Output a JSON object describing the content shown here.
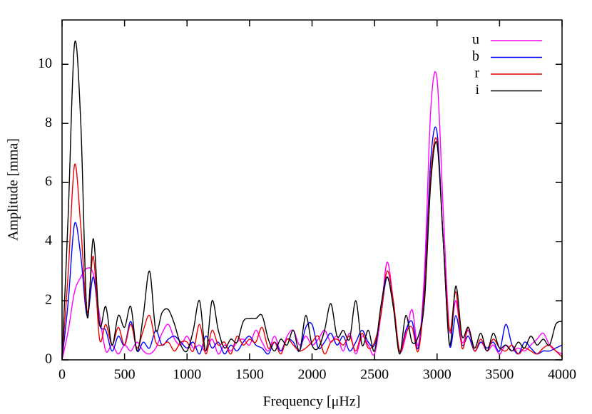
{
  "chart_data": {
    "type": "line",
    "xlabel": "Frequency [μHz]",
    "ylabel": "Amplitude [mma]",
    "x": [
      0,
      50,
      100,
      150,
      200,
      250,
      300,
      350,
      400,
      450,
      500,
      550,
      600,
      650,
      700,
      750,
      800,
      850,
      900,
      950,
      1000,
      1050,
      1100,
      1150,
      1200,
      1250,
      1300,
      1350,
      1400,
      1450,
      1500,
      1550,
      1600,
      1650,
      1700,
      1750,
      1800,
      1850,
      1900,
      1950,
      2000,
      2050,
      2100,
      2150,
      2200,
      2250,
      2300,
      2350,
      2400,
      2450,
      2500,
      2550,
      2600,
      2650,
      2700,
      2750,
      2800,
      2850,
      2900,
      2950,
      3000,
      3050,
      3100,
      3150,
      3200,
      3250,
      3300,
      3350,
      3400,
      3450,
      3500,
      3550,
      3600,
      3650,
      3700,
      3750,
      3800,
      3850,
      3900,
      3950,
      4000
    ],
    "series": [
      {
        "name": "u",
        "color": "#ff00ff",
        "values": [
          0,
          1,
          2.3,
          2.8,
          3.1,
          2.9,
          1.5,
          0.3,
          0.5,
          0.2,
          0.5,
          0.3,
          0.6,
          0.3,
          0.2,
          0.4,
          0.9,
          1.2,
          0.7,
          0.5,
          0.8,
          0.4,
          0.5,
          0.3,
          0.7,
          0.2,
          0.5,
          0.3,
          0.6,
          0.7,
          0.5,
          1.0,
          0.6,
          0.3,
          0.8,
          0.3,
          0.8,
          1.0,
          0.5,
          0.8,
          0.5,
          0.7,
          1.0,
          0.6,
          0.8,
          0.3,
          0.9,
          0.2,
          0.8,
          0.5,
          0.2,
          1.5,
          3.3,
          2.0,
          0.3,
          0.8,
          1.7,
          0.5,
          3.0,
          8.5,
          9.5,
          5.0,
          1.0,
          2.0,
          0.6,
          1.0,
          0.3,
          0.6,
          0.3,
          0.5,
          0.2,
          0.5,
          0.3,
          0.4,
          0.3,
          0.5,
          0.7,
          0.9,
          0.5,
          0.3,
          0.2
        ]
      },
      {
        "name": "b",
        "color": "#0000ff",
        "values": [
          0,
          2,
          4.6,
          3.5,
          1.5,
          2.8,
          1.2,
          1.0,
          0.3,
          0.8,
          0.5,
          1.3,
          0.3,
          0.6,
          0.4,
          1.0,
          0.5,
          0.7,
          0.8,
          0.6,
          0.4,
          0.6,
          0.2,
          0.8,
          0.4,
          0.6,
          0.2,
          0.5,
          0.3,
          0.6,
          0.8,
          0.5,
          0.4,
          0.2,
          0.6,
          0.3,
          0.7,
          0.6,
          0.3,
          1.1,
          1.2,
          0.4,
          0.6,
          0.9,
          0.5,
          0.8,
          0.3,
          0.6,
          1.0,
          0.6,
          0.5,
          1.5,
          2.8,
          1.8,
          0.3,
          1.0,
          1.3,
          0.4,
          2.5,
          6.8,
          7.7,
          4.0,
          0.5,
          1.5,
          0.5,
          0.8,
          0.3,
          0.6,
          0.4,
          0.6,
          0.3,
          1.2,
          0.5,
          0.2,
          0.6,
          0.4,
          0.2,
          0.3,
          0.3,
          0.4,
          0.5
        ]
      },
      {
        "name": "r",
        "color": "#ee0000",
        "values": [
          0,
          3,
          6.6,
          4.5,
          1.6,
          3.5,
          0.7,
          1.2,
          0.5,
          1.1,
          0.5,
          1.2,
          0.4,
          1.0,
          1.5,
          0.6,
          0.5,
          0.6,
          0.3,
          0.6,
          0.6,
          0.3,
          1.2,
          0.2,
          1.0,
          0.5,
          0.6,
          0.2,
          0.8,
          0.5,
          0.7,
          0.6,
          1.1,
          0.4,
          0.6,
          0.2,
          0.7,
          0.5,
          0.3,
          0.4,
          0.6,
          0.8,
          0.2,
          0.6,
          0.7,
          0.5,
          0.8,
          0.3,
          0.9,
          0.4,
          0.6,
          1.5,
          3.0,
          2.0,
          0.3,
          0.9,
          1.1,
          0.3,
          2.3,
          6.3,
          7.4,
          4.0,
          1.0,
          2.3,
          0.4,
          1.1,
          0.3,
          0.7,
          0.3,
          0.7,
          0.4,
          0.3,
          0.5,
          0.2,
          0.4,
          0.3,
          0.2,
          0.4,
          0.5,
          0.3,
          0.1
        ]
      },
      {
        "name": "i",
        "color": "#000000",
        "values": [
          0,
          5,
          10.7,
          8,
          1.5,
          4.1,
          1.2,
          1.8,
          0.5,
          1.5,
          1.1,
          1.8,
          0.3,
          1.5,
          3.0,
          1.0,
          1.6,
          1.7,
          1.2,
          0.5,
          0.3,
          1.0,
          2.0,
          0.3,
          2.0,
          1.0,
          0.4,
          0.7,
          0.6,
          1.3,
          1.4,
          1.4,
          1.5,
          0.7,
          0.3,
          0.7,
          0.5,
          1.0,
          0.3,
          1.5,
          0.5,
          0.4,
          1.0,
          1.9,
          0.8,
          1.0,
          0.7,
          2.0,
          0.5,
          1.0,
          0.3,
          1.8,
          2.8,
          1.8,
          0.2,
          1.5,
          0.6,
          0.8,
          2.0,
          6.0,
          7.3,
          4.0,
          0.5,
          2.5,
          0.8,
          1.1,
          0.4,
          0.9,
          0.3,
          0.9,
          0.4,
          0.5,
          0.3,
          0.6,
          0.4,
          0.8,
          0.5,
          0.7,
          0.5,
          1.2,
          1.3
        ]
      }
    ],
    "xlim": [
      0,
      4000
    ],
    "xticks": [
      0,
      500,
      1000,
      1500,
      2000,
      2500,
      3000,
      3500,
      4000
    ],
    "ylim": [
      0,
      11.5
    ],
    "yticks": [
      0,
      2,
      4,
      6,
      8,
      10
    ],
    "legend": "top-right"
  }
}
